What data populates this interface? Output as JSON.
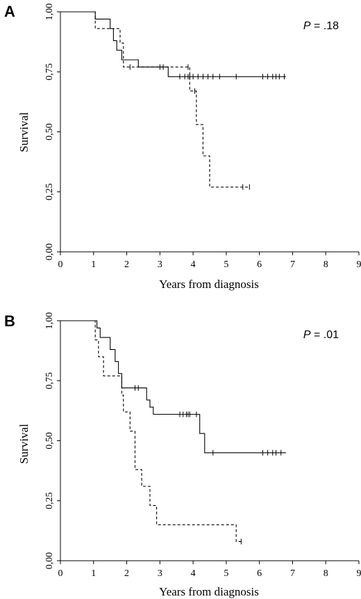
{
  "chart_data": [
    {
      "type": "line",
      "panel_label": "A",
      "p_value_label": "P",
      "p_value_text": " = .18",
      "xlabel": "Years from diagnosis",
      "ylabel": "Survival",
      "xlim": [
        0,
        9
      ],
      "ylim": [
        0,
        1
      ],
      "x_ticks": [
        0,
        1,
        2,
        3,
        4,
        5,
        6,
        7,
        8,
        9
      ],
      "x_tick_labels": [
        "0",
        "1",
        "2",
        "3",
        "4",
        "5",
        "6",
        "7",
        "8",
        "9"
      ],
      "y_ticks": [
        0,
        0.25,
        0.5,
        0.75,
        1
      ],
      "y_tick_labels": [
        "0,00",
        "0,25",
        "0,50",
        "0,75",
        "1,00"
      ],
      "series": [
        {
          "style": "solid",
          "x": [
            0,
            1.05,
            1.05,
            1.5,
            1.5,
            1.6,
            1.6,
            1.7,
            1.7,
            1.85,
            1.85,
            2.35,
            2.35,
            3.25,
            3.25,
            6.8
          ],
          "y": [
            1.0,
            1.0,
            0.97,
            0.97,
            0.93,
            0.93,
            0.88,
            0.88,
            0.84,
            0.84,
            0.8,
            0.8,
            0.77,
            0.77,
            0.73,
            0.73
          ],
          "censor_x": [
            3.6,
            3.75,
            3.85,
            3.9,
            4.0,
            4.15,
            4.3,
            4.45,
            4.6,
            4.8,
            5.3,
            6.1,
            6.25,
            6.4,
            6.5,
            6.6,
            6.75
          ],
          "censor_y": [
            0.73,
            0.73,
            0.73,
            0.73,
            0.73,
            0.73,
            0.73,
            0.73,
            0.73,
            0.73,
            0.73,
            0.73,
            0.73,
            0.73,
            0.73,
            0.73,
            0.73
          ]
        },
        {
          "style": "dashed",
          "x": [
            0,
            1.05,
            1.05,
            1.8,
            1.8,
            1.9,
            1.9,
            3.9,
            3.9,
            4.1,
            4.1,
            4.3,
            4.3,
            4.5,
            4.5,
            5.7
          ],
          "y": [
            1.0,
            1.0,
            0.93,
            0.93,
            0.87,
            0.87,
            0.77,
            0.77,
            0.67,
            0.67,
            0.53,
            0.53,
            0.4,
            0.4,
            0.27,
            0.27
          ],
          "censor_x": [
            2.1,
            3.0,
            3.1,
            3.85,
            4.05,
            5.5,
            5.7
          ],
          "censor_y": [
            0.77,
            0.77,
            0.77,
            0.77,
            0.67,
            0.27,
            0.27
          ]
        }
      ]
    },
    {
      "type": "line",
      "panel_label": "B",
      "p_value_label": "P",
      "p_value_text": " = .01",
      "xlabel": "Years from diagnosis",
      "ylabel": "Survival",
      "xlim": [
        0,
        9
      ],
      "ylim": [
        0,
        1
      ],
      "x_ticks": [
        0,
        1,
        2,
        3,
        4,
        5,
        6,
        7,
        8,
        9
      ],
      "x_tick_labels": [
        "0",
        "1",
        "2",
        "3",
        "4",
        "5",
        "6",
        "7",
        "8",
        "9"
      ],
      "y_ticks": [
        0,
        0.25,
        0.5,
        0.75,
        1
      ],
      "y_tick_labels": [
        "0,00",
        "0,25",
        "0,50",
        "0,75",
        "1,00"
      ],
      "series": [
        {
          "style": "solid",
          "x": [
            0,
            1.1,
            1.1,
            1.2,
            1.2,
            1.5,
            1.5,
            1.65,
            1.65,
            1.75,
            1.75,
            1.85,
            1.85,
            2.6,
            2.6,
            2.7,
            2.7,
            2.8,
            2.8,
            2.9,
            2.9,
            4.2,
            4.2,
            4.35,
            4.35,
            6.8
          ],
          "y": [
            1.0,
            1.0,
            0.97,
            0.97,
            0.93,
            0.93,
            0.88,
            0.88,
            0.83,
            0.83,
            0.78,
            0.78,
            0.72,
            0.72,
            0.67,
            0.67,
            0.64,
            0.64,
            0.61,
            0.61,
            0.61,
            0.61,
            0.53,
            0.53,
            0.45,
            0.45
          ],
          "censor_x": [
            2.25,
            2.35,
            3.6,
            3.7,
            3.8,
            3.85,
            3.9,
            4.1,
            4.6,
            6.1,
            6.25,
            6.4,
            6.5,
            6.65
          ],
          "censor_y": [
            0.72,
            0.72,
            0.61,
            0.61,
            0.61,
            0.61,
            0.61,
            0.61,
            0.45,
            0.45,
            0.45,
            0.45,
            0.45,
            0.45
          ]
        },
        {
          "style": "dashed",
          "x": [
            0,
            1.05,
            1.05,
            1.15,
            1.15,
            1.3,
            1.3,
            1.85,
            1.85,
            1.9,
            1.9,
            2.1,
            2.1,
            2.25,
            2.25,
            2.45,
            2.45,
            2.7,
            2.7,
            2.9,
            2.9,
            5.3,
            5.3,
            5.45
          ],
          "y": [
            1.0,
            1.0,
            0.92,
            0.92,
            0.85,
            0.85,
            0.77,
            0.77,
            0.69,
            0.69,
            0.62,
            0.62,
            0.54,
            0.54,
            0.38,
            0.38,
            0.31,
            0.31,
            0.23,
            0.23,
            0.15,
            0.15,
            0.08,
            0.08
          ],
          "censor_x": [
            5.45
          ],
          "censor_y": [
            0.08
          ]
        }
      ]
    }
  ]
}
